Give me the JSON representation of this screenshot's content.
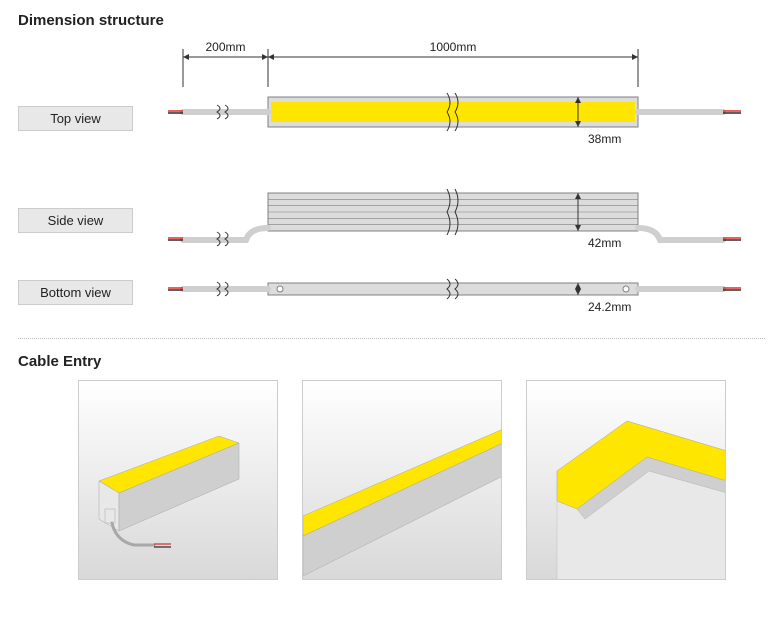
{
  "section1": {
    "title": "Dimension structure",
    "views": {
      "top": "Top view",
      "side": "Side view",
      "bottom": "Bottom view"
    },
    "dims": {
      "cable_len": "200mm",
      "body_len": "1000mm",
      "top_w": "38mm",
      "side_h": "42mm",
      "bottom_w": "24.2mm"
    },
    "colors": {
      "accent": "#ffe600",
      "body_fill": "#dcdcdc",
      "body_stroke": "#808080",
      "cable_grey": "#cfcfcf",
      "wire_red": "#e00000",
      "wire_black": "#000000",
      "dim_line": "#333333",
      "text": "#222222"
    },
    "font_size_dim": 12
  },
  "section2": {
    "title": "Cable Entry",
    "cards": [
      {
        "name": "cable-entry-end-view"
      },
      {
        "name": "cable-entry-strip-view"
      },
      {
        "name": "cable-entry-corner-view"
      }
    ],
    "colors": {
      "accent": "#ffe600",
      "body_light": "#e8e8e8",
      "body_mid": "#cfcfcf",
      "body_dark": "#a8a8a8",
      "bg_grad_top": "#ffffff",
      "bg_grad_bot": "#d8d8d8"
    }
  }
}
